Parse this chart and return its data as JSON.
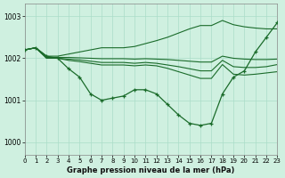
{
  "title": "Graphe pression niveau de la mer (hPa)",
  "background_color": "#cff0e0",
  "grid_color": "#aaddc8",
  "line_color": "#1a6b2a",
  "xlim": [
    0,
    23
  ],
  "ylim": [
    999.7,
    1003.3
  ],
  "yticks": [
    1000,
    1001,
    1002,
    1003
  ],
  "xticks": [
    0,
    1,
    2,
    3,
    4,
    5,
    6,
    7,
    8,
    9,
    10,
    11,
    12,
    13,
    14,
    15,
    16,
    17,
    18,
    19,
    20,
    21,
    22,
    23
  ],
  "lines": [
    {
      "y": [
        1002.2,
        1002.25,
        1002.05,
        1002.0,
        1001.75,
        1001.55,
        1001.15,
        1001.0,
        1001.05,
        1001.1,
        1001.25,
        1001.25,
        1001.15,
        1000.9,
        1000.65,
        1000.45,
        1000.4,
        1000.45,
        1001.15,
        1001.55,
        1001.7,
        1002.15,
        1002.5,
        1002.85
      ],
      "marker": true
    },
    {
      "y": [
        1002.2,
        1002.25,
        1002.0,
        1002.0,
        1001.95,
        1001.92,
        1001.88,
        1001.84,
        1001.84,
        1001.84,
        1001.82,
        1001.84,
        1001.82,
        1001.76,
        1001.68,
        1001.6,
        1001.52,
        1001.52,
        1001.85,
        1001.62,
        1001.6,
        1001.62,
        1001.65,
        1001.68
      ],
      "marker": false
    },
    {
      "y": [
        1002.2,
        1002.25,
        1002.0,
        1002.0,
        1001.98,
        1001.96,
        1001.93,
        1001.9,
        1001.9,
        1001.9,
        1001.88,
        1001.9,
        1001.88,
        1001.84,
        1001.8,
        1001.75,
        1001.7,
        1001.7,
        1001.95,
        1001.8,
        1001.78,
        1001.78,
        1001.8,
        1001.85
      ],
      "marker": false
    },
    {
      "y": [
        1002.2,
        1002.25,
        1002.02,
        1002.02,
        1002.02,
        1002.01,
        1002.0,
        1001.99,
        1001.99,
        1001.99,
        1001.98,
        1001.99,
        1001.98,
        1001.97,
        1001.95,
        1001.93,
        1001.91,
        1001.91,
        1002.05,
        1002.0,
        1001.98,
        1001.97,
        1001.97,
        1001.98
      ],
      "marker": false
    },
    {
      "y": [
        1002.2,
        1002.25,
        1002.05,
        1002.05,
        1002.1,
        1002.15,
        1002.2,
        1002.25,
        1002.25,
        1002.25,
        1002.28,
        1002.35,
        1002.42,
        1002.5,
        1002.6,
        1002.7,
        1002.78,
        1002.78,
        1002.9,
        1002.8,
        1002.75,
        1002.72,
        1002.7,
        1002.7
      ],
      "marker": false
    }
  ]
}
